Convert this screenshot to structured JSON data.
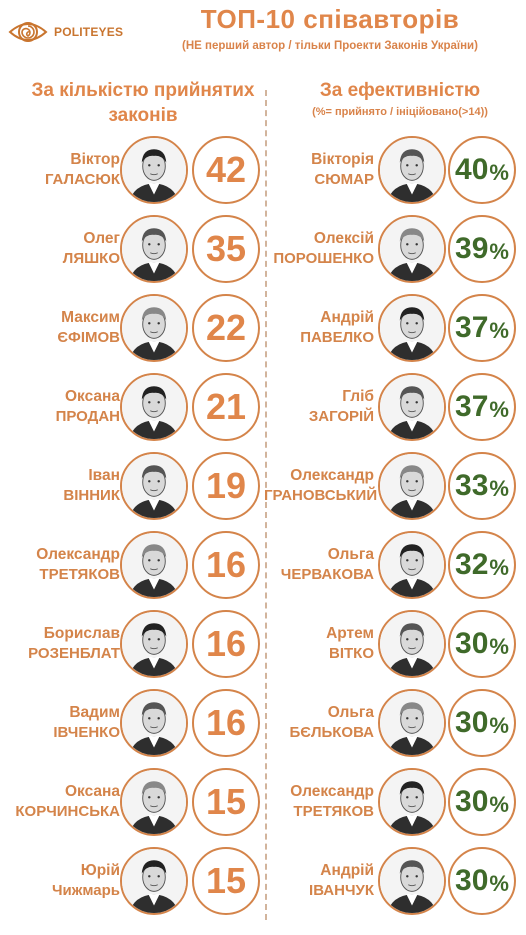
{
  "header": {
    "logo_text_a": "POLIT",
    "logo_text_b": "EYES",
    "title": "ТОП-10 співавторів",
    "subtitle": "(НЕ перший автор / тільки Проекти Законів України)"
  },
  "left_column": {
    "heading": "За кількістю прийнятих законів",
    "items": [
      {
        "first": "Віктор",
        "last": "ГАЛАСЮК",
        "value": "42"
      },
      {
        "first": "Олег",
        "last": "ЛЯШКО",
        "value": "35"
      },
      {
        "first": "Максим",
        "last": "ЄФІМОВ",
        "value": "22"
      },
      {
        "first": "Оксана",
        "last": "ПРОДАН",
        "value": "21"
      },
      {
        "first": "Іван",
        "last": "ВІННИК",
        "value": "19"
      },
      {
        "first": "Олександр",
        "last": "ТРЕТЯКОВ",
        "value": "16"
      },
      {
        "first": "Борислав",
        "last": "РОЗЕНБЛАТ",
        "value": "16"
      },
      {
        "first": "Вадим",
        "last": "ІВЧЕНКО",
        "value": "16"
      },
      {
        "first": "Оксана",
        "last": "КОРЧИНСЬКА",
        "value": "15"
      },
      {
        "first": "Юрій",
        "last": "Чижмарь",
        "value": "15"
      }
    ]
  },
  "right_column": {
    "heading": "За ефективністю",
    "note": "(%= прийнято / ініційовано(>14))",
    "items": [
      {
        "first": "Вікторія",
        "last": "СЮМАР",
        "value": "40",
        "unit": "%"
      },
      {
        "first": "Олексій",
        "last": "ПОРОШЕНКО",
        "value": "39",
        "unit": "%"
      },
      {
        "first": "Андрій",
        "last": "ПАВЕЛКО",
        "value": "37",
        "unit": "%"
      },
      {
        "first": "Гліб",
        "last": "ЗАГОРІЙ",
        "value": "37",
        "unit": "%"
      },
      {
        "first": "Олександр",
        "last": "ГРАНОВСЬКИЙ",
        "value": "33",
        "unit": "%"
      },
      {
        "first": "Ольга",
        "last": "ЧЕРВАКОВА",
        "value": "32",
        "unit": "%"
      },
      {
        "first": "Артем",
        "last": "ВІТКО",
        "value": "30",
        "unit": "%"
      },
      {
        "first": "Ольга",
        "last": "БЄЛЬКОВА",
        "value": "30",
        "unit": "%"
      },
      {
        "first": "Олександр",
        "last": "ТРЕТЯКОВ",
        "value": "30",
        "unit": "%"
      },
      {
        "first": "Андрій",
        "last": "ІВАНЧУК",
        "value": "30",
        "unit": "%"
      }
    ]
  },
  "colors": {
    "accent": "#e0864a",
    "ring": "#d4844a",
    "efficiency_text": "#3f6a2a"
  }
}
